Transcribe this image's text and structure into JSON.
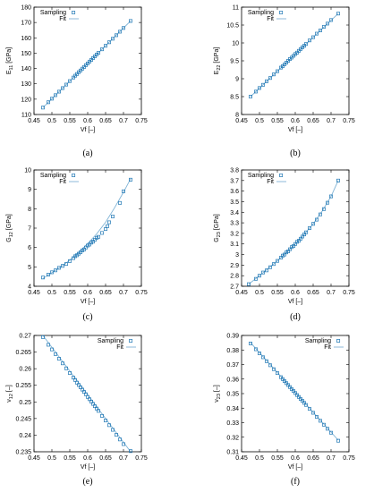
{
  "colors": {
    "sampling": "#1f77b4",
    "fit": "#7fb3d5",
    "axis": "#000000"
  },
  "chart_data": [
    {
      "type": "scatter",
      "caption": "(a)",
      "xlabel": "Vf [–]",
      "ylabel": "E11 [GPa]",
      "ylabel_main": "E",
      "ylabel_sub": "11",
      "ylabel_unit": " [GPa]",
      "xlim": [
        0.45,
        0.75
      ],
      "ylim": [
        110,
        180
      ],
      "xticks": [
        "0.45",
        "0.5",
        "0.55",
        "0.6",
        "0.65",
        "0.7",
        "0.75"
      ],
      "yticks": [
        "110",
        "120",
        "130",
        "140",
        "150",
        "160",
        "170",
        "180"
      ],
      "legend": [
        "Sampling",
        "Fit"
      ],
      "legend_position": "top-left",
      "grid": false,
      "fit": {
        "x": [
          0.475,
          0.72
        ],
        "y": [
          114.5,
          171
        ]
      },
      "series": [
        {
          "name": "Sampling",
          "x": [
            0.475,
            0.49,
            0.5,
            0.51,
            0.52,
            0.53,
            0.54,
            0.55,
            0.56,
            0.565,
            0.57,
            0.575,
            0.58,
            0.585,
            0.59,
            0.595,
            0.6,
            0.605,
            0.61,
            0.615,
            0.62,
            0.625,
            0.63,
            0.64,
            0.65,
            0.66,
            0.67,
            0.68,
            0.69,
            0.7,
            0.72
          ],
          "y": [
            114.5,
            118,
            120.3,
            122.6,
            124.9,
            127.2,
            129.5,
            131.8,
            134.1,
            135.3,
            136.4,
            137.6,
            138.7,
            139.9,
            141,
            142.2,
            143.3,
            144.5,
            145.6,
            146.8,
            147.9,
            149.1,
            150.2,
            152.5,
            154.8,
            157.1,
            159.4,
            161.7,
            164,
            166.4,
            171
          ]
        }
      ]
    },
    {
      "type": "scatter",
      "caption": "(b)",
      "xlabel": "Vf [–]",
      "ylabel": "E22 [GPa]",
      "ylabel_main": "E",
      "ylabel_sub": "22",
      "ylabel_unit": " [GPa]",
      "xlim": [
        0.45,
        0.75
      ],
      "ylim": [
        8,
        11
      ],
      "xticks": [
        "0.45",
        "0.5",
        "0.55",
        "0.6",
        "0.65",
        "0.7",
        "0.75"
      ],
      "yticks": [
        "8",
        "8.5",
        "9",
        "9.5",
        "10",
        "10.5",
        "11"
      ],
      "legend": [
        "Sampling",
        "Fit"
      ],
      "legend_position": "top-left",
      "grid": false,
      "fit": {
        "x": [
          0.475,
          0.72
        ],
        "y": [
          8.5,
          10.82
        ]
      },
      "series": [
        {
          "name": "Sampling",
          "x": [
            0.475,
            0.49,
            0.5,
            0.51,
            0.52,
            0.53,
            0.54,
            0.55,
            0.56,
            0.565,
            0.57,
            0.575,
            0.58,
            0.585,
            0.59,
            0.595,
            0.6,
            0.605,
            0.61,
            0.615,
            0.62,
            0.625,
            0.63,
            0.64,
            0.65,
            0.66,
            0.67,
            0.68,
            0.69,
            0.7,
            0.72
          ],
          "y": [
            8.5,
            8.64,
            8.74,
            8.83,
            8.93,
            9.02,
            9.12,
            9.21,
            9.31,
            9.35,
            9.4,
            9.45,
            9.5,
            9.55,
            9.59,
            9.64,
            9.69,
            9.73,
            9.78,
            9.83,
            9.88,
            9.92,
            9.97,
            10.07,
            10.16,
            10.26,
            10.35,
            10.45,
            10.54,
            10.64,
            10.82
          ]
        }
      ]
    },
    {
      "type": "scatter",
      "caption": "(c)",
      "xlabel": "Vf [–]",
      "ylabel": "G12 [GPa]",
      "ylabel_main": "G",
      "ylabel_sub": "12",
      "ylabel_unit": " [GPa]",
      "xlim": [
        0.45,
        0.75
      ],
      "ylim": [
        4,
        10
      ],
      "xticks": [
        "0.45",
        "0.5",
        "0.55",
        "0.6",
        "0.65",
        "0.7",
        "0.75"
      ],
      "yticks": [
        "4",
        "5",
        "6",
        "7",
        "8",
        "9",
        "10"
      ],
      "legend": [
        "Sampling",
        "Fit"
      ],
      "legend_position": "top-left",
      "grid": false,
      "fit": {
        "x": [
          0.475,
          0.5,
          0.525,
          0.55,
          0.575,
          0.6,
          0.625,
          0.65,
          0.675,
          0.7,
          0.72
        ],
        "y": [
          4.4,
          4.7,
          5.0,
          5.35,
          5.75,
          6.2,
          6.7,
          7.3,
          8.05,
          8.85,
          9.55
        ]
      },
      "series": [
        {
          "name": "Sampling",
          "x": [
            0.475,
            0.49,
            0.5,
            0.51,
            0.52,
            0.53,
            0.54,
            0.55,
            0.56,
            0.565,
            0.57,
            0.575,
            0.58,
            0.585,
            0.59,
            0.595,
            0.6,
            0.605,
            0.61,
            0.615,
            0.62,
            0.625,
            0.63,
            0.64,
            0.65,
            0.655,
            0.66,
            0.67,
            0.69,
            0.7,
            0.72
          ],
          "y": [
            4.45,
            4.6,
            4.72,
            4.82,
            4.95,
            5.05,
            5.15,
            5.3,
            5.45,
            5.55,
            5.6,
            5.68,
            5.75,
            5.85,
            5.9,
            6.0,
            6.1,
            6.15,
            6.25,
            6.3,
            6.4,
            6.5,
            6.55,
            6.75,
            6.95,
            7.1,
            7.3,
            7.6,
            8.3,
            8.9,
            9.5
          ]
        }
      ]
    },
    {
      "type": "scatter",
      "caption": "(d)",
      "xlabel": "Vf [–]",
      "ylabel": "G23 [GPa]",
      "ylabel_main": "G",
      "ylabel_sub": "23",
      "ylabel_unit": " [GPa]",
      "xlim": [
        0.45,
        0.75
      ],
      "ylim": [
        2.7,
        3.8
      ],
      "xticks": [
        "0.45",
        "0.5",
        "0.55",
        "0.6",
        "0.65",
        "0.7",
        "0.75"
      ],
      "yticks": [
        "2.7",
        "2.8",
        "2.9",
        "3",
        "3.1",
        "3.2",
        "3.3",
        "3.4",
        "3.5",
        "3.6",
        "3.7",
        "3.8"
      ],
      "legend": [
        "Sampling",
        "Fit"
      ],
      "legend_position": "top-left",
      "grid": false,
      "fit": {
        "x": [
          0.47,
          0.5,
          0.525,
          0.55,
          0.575,
          0.6,
          0.625,
          0.65,
          0.675,
          0.7,
          0.72
        ],
        "y": [
          2.72,
          2.8,
          2.87,
          2.94,
          3.02,
          3.1,
          3.19,
          3.29,
          3.41,
          3.55,
          3.7
        ]
      },
      "series": [
        {
          "name": "Sampling",
          "x": [
            0.47,
            0.49,
            0.5,
            0.51,
            0.52,
            0.53,
            0.54,
            0.55,
            0.56,
            0.565,
            0.57,
            0.575,
            0.58,
            0.585,
            0.59,
            0.595,
            0.6,
            0.605,
            0.61,
            0.615,
            0.62,
            0.625,
            0.63,
            0.64,
            0.65,
            0.66,
            0.67,
            0.68,
            0.69,
            0.7,
            0.72
          ],
          "y": [
            2.72,
            2.77,
            2.8,
            2.83,
            2.85,
            2.88,
            2.91,
            2.94,
            2.97,
            2.99,
            3.0,
            3.02,
            3.03,
            3.05,
            3.07,
            3.08,
            3.1,
            3.12,
            3.13,
            3.15,
            3.17,
            3.19,
            3.21,
            3.25,
            3.29,
            3.33,
            3.38,
            3.43,
            3.49,
            3.55,
            3.7
          ]
        }
      ]
    },
    {
      "type": "scatter",
      "caption": "(e)",
      "xlabel": "Vf [–]",
      "ylabel": "ν12 [–]",
      "ylabel_main": "ν",
      "ylabel_sub": "12",
      "ylabel_unit": " [–]",
      "xlim": [
        0.45,
        0.75
      ],
      "ylim": [
        0.235,
        0.27
      ],
      "xticks": [
        "0.45",
        "0.5",
        "0.55",
        "0.6",
        "0.65",
        "0.7",
        "0.75"
      ],
      "yticks": [
        "0.235",
        "0.24",
        "0.245",
        "0.25",
        "0.255",
        "0.26",
        "0.265",
        "0.27"
      ],
      "legend": [
        "Sampling",
        "Fit"
      ],
      "legend_position": "top-right",
      "grid": false,
      "fit": {
        "x": [
          0.475,
          0.72
        ],
        "y": [
          0.27,
          0.235
        ]
      },
      "series": [
        {
          "name": "Sampling",
          "x": [
            0.475,
            0.49,
            0.5,
            0.51,
            0.52,
            0.53,
            0.54,
            0.55,
            0.56,
            0.565,
            0.57,
            0.575,
            0.58,
            0.585,
            0.59,
            0.595,
            0.6,
            0.605,
            0.61,
            0.615,
            0.62,
            0.625,
            0.63,
            0.64,
            0.65,
            0.66,
            0.67,
            0.68,
            0.69,
            0.7,
            0.72
          ],
          "y": [
            0.2695,
            0.2672,
            0.2658,
            0.2644,
            0.263,
            0.2616,
            0.2601,
            0.2587,
            0.2573,
            0.2566,
            0.2558,
            0.2551,
            0.2544,
            0.2537,
            0.253,
            0.2523,
            0.2515,
            0.2508,
            0.2501,
            0.2494,
            0.2487,
            0.248,
            0.2473,
            0.2458,
            0.2444,
            0.243,
            0.2416,
            0.2401,
            0.2387,
            0.2373,
            0.2352
          ]
        }
      ]
    },
    {
      "type": "scatter",
      "caption": "(f)",
      "xlabel": "Vf [–]",
      "ylabel": "ν23 [–]",
      "ylabel_main": "ν",
      "ylabel_sub": "23",
      "ylabel_unit": " [–]",
      "xlim": [
        0.45,
        0.75
      ],
      "ylim": [
        0.31,
        0.39
      ],
      "xticks": [
        "0.45",
        "0.5",
        "0.55",
        "0.6",
        "0.65",
        "0.7",
        "0.75"
      ],
      "yticks": [
        "0.31",
        "0.32",
        "0.33",
        "0.34",
        "0.35",
        "0.36",
        "0.37",
        "0.38",
        "0.39"
      ],
      "legend": [
        "Sampling",
        "Fit"
      ],
      "legend_position": "top-right",
      "grid": false,
      "fit": {
        "x": [
          0.475,
          0.72
        ],
        "y": [
          0.385,
          0.318
        ]
      },
      "series": [
        {
          "name": "Sampling",
          "x": [
            0.475,
            0.49,
            0.5,
            0.51,
            0.52,
            0.53,
            0.54,
            0.55,
            0.56,
            0.565,
            0.57,
            0.575,
            0.58,
            0.585,
            0.59,
            0.595,
            0.6,
            0.605,
            0.61,
            0.615,
            0.62,
            0.625,
            0.63,
            0.64,
            0.65,
            0.66,
            0.67,
            0.68,
            0.69,
            0.7,
            0.72
          ],
          "y": [
            0.3845,
            0.3805,
            0.3777,
            0.375,
            0.3723,
            0.3695,
            0.3668,
            0.3641,
            0.3613,
            0.36,
            0.3586,
            0.3572,
            0.3559,
            0.3545,
            0.3531,
            0.3518,
            0.3504,
            0.349,
            0.3477,
            0.3463,
            0.345,
            0.3436,
            0.3422,
            0.3395,
            0.3368,
            0.334,
            0.3313,
            0.3286,
            0.3258,
            0.3231,
            0.3176
          ]
        }
      ]
    }
  ]
}
